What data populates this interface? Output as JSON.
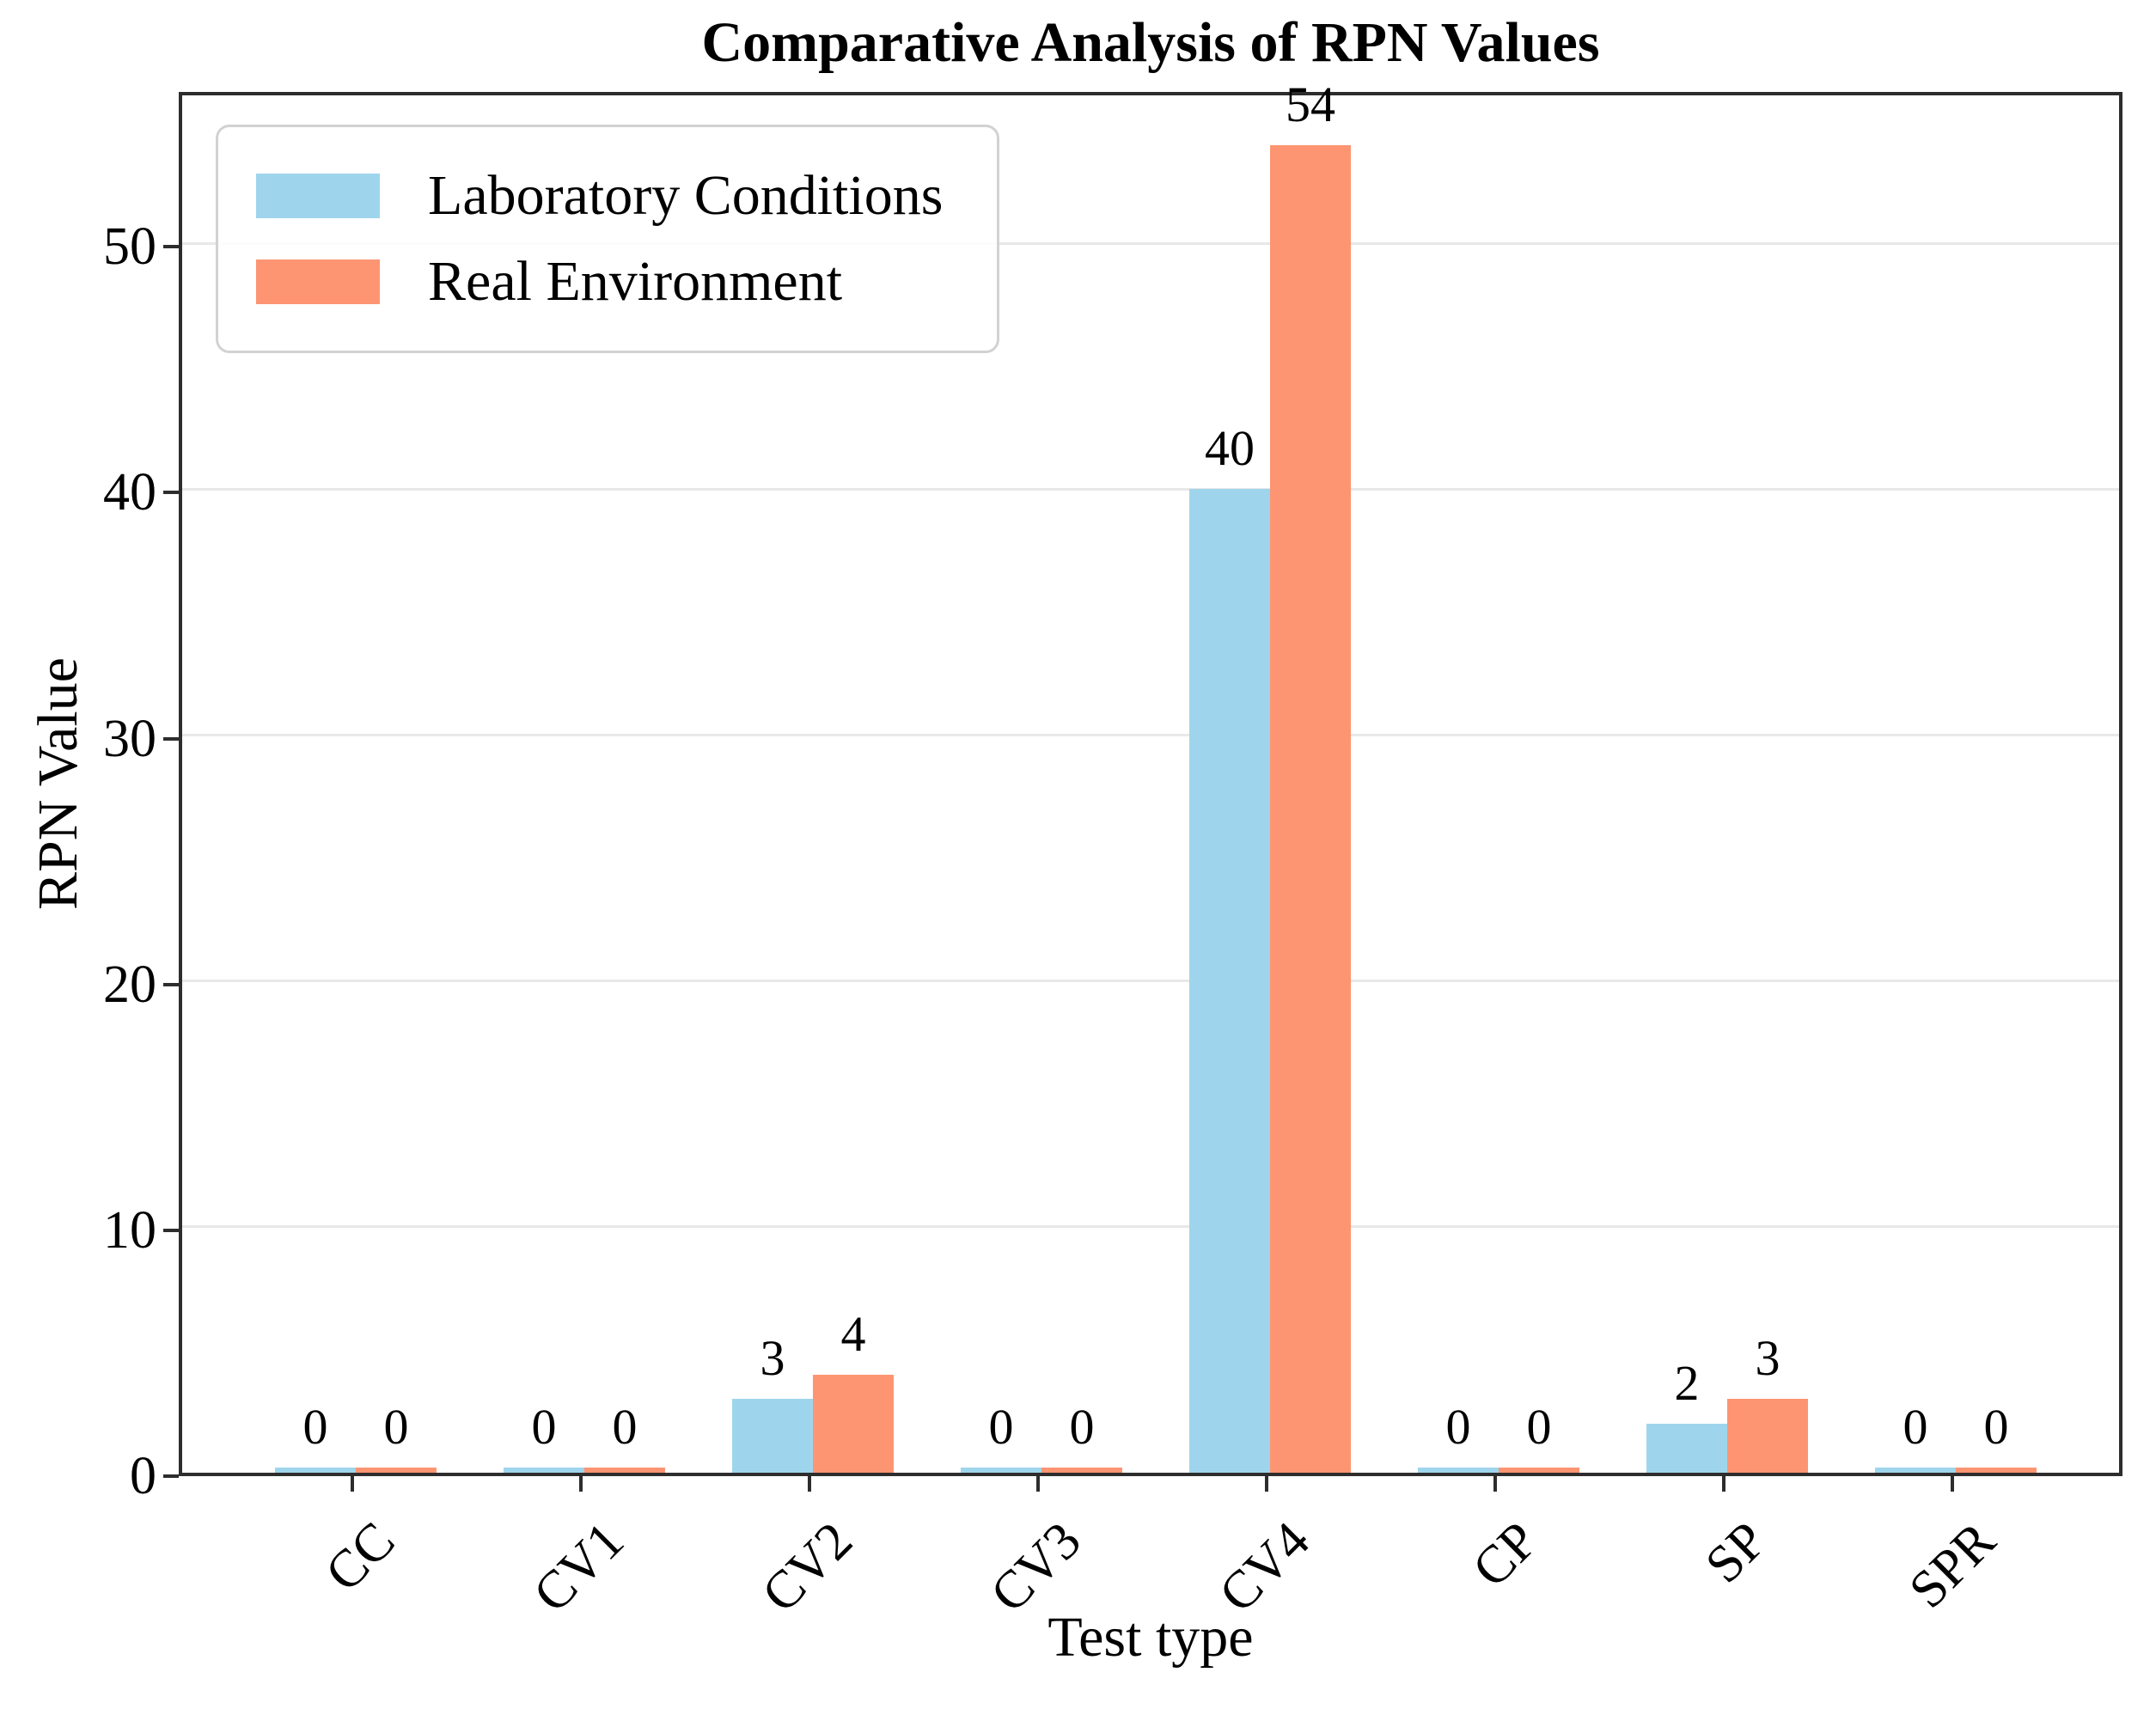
{
  "chart_data": {
    "type": "bar",
    "title": "Comparative Analysis of RPN Values",
    "xlabel": "Test type",
    "ylabel": "RPN Value",
    "categories": [
      "CC",
      "CV1",
      "CV2",
      "CV3",
      "CV4",
      "CP",
      "SP",
      "SPR"
    ],
    "series": [
      {
        "name": "Laboratory Conditions",
        "color": "#9fd5ec",
        "values": [
          0,
          0,
          3,
          0,
          40,
          0,
          2,
          0
        ]
      },
      {
        "name": "Real Environment",
        "color": "#fd9572",
        "values": [
          0,
          0,
          4,
          0,
          54,
          0,
          3,
          0
        ]
      }
    ],
    "y_ticks": [
      0,
      10,
      20,
      30,
      40,
      50
    ],
    "ylim": [
      0,
      56.3
    ],
    "grid": "horizontal-light",
    "grid_color": "#e8e8e8",
    "legend_position": "upper-left",
    "bar_value_labels": true,
    "axis_color": "#2d2d2d"
  }
}
